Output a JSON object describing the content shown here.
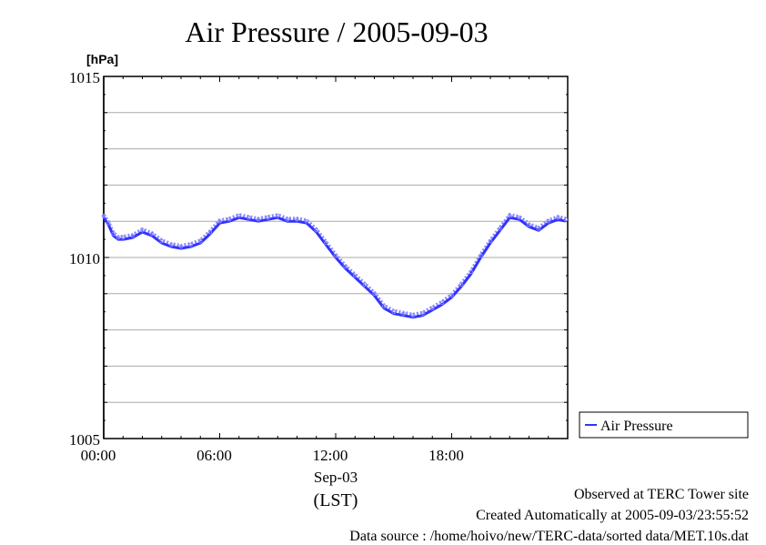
{
  "chart_data": {
    "type": "line",
    "title": "Air Pressure / 2005-09-03",
    "ylabel": "[hPa]",
    "xlabel": "",
    "ylim": [
      1005,
      1015
    ],
    "yticks": [
      "1015",
      "1010",
      "1005"
    ],
    "xlim": [
      0,
      24
    ],
    "xticks": [
      {
        "value": 0,
        "label": "00:00"
      },
      {
        "value": 6,
        "label": "06:00"
      },
      {
        "value": 12,
        "label": "12:00"
      },
      {
        "value": 18,
        "label": "18:00"
      }
    ],
    "date_label": "Sep-03",
    "timezone_label": "(LST)",
    "grid": true,
    "legend": "right",
    "series": [
      {
        "name": "Air Pressure",
        "color": "#3333ff",
        "marker_color": "#8888ff",
        "x": [
          0,
          0.25,
          0.5,
          0.75,
          1,
          1.5,
          2,
          2.5,
          3,
          3.5,
          4,
          4.5,
          5,
          5.5,
          6,
          6.5,
          7,
          7.5,
          8,
          8.5,
          9,
          9.5,
          10,
          10.5,
          11,
          11.5,
          12,
          12.5,
          13,
          13.5,
          14,
          14.5,
          15,
          15.5,
          16,
          16.5,
          17,
          17.5,
          18,
          18.5,
          19,
          19.5,
          20,
          20.5,
          21,
          21.5,
          22,
          22.5,
          23,
          23.5,
          23.9
        ],
        "y": [
          1011.1,
          1010.9,
          1010.6,
          1010.5,
          1010.5,
          1010.55,
          1010.7,
          1010.6,
          1010.4,
          1010.3,
          1010.25,
          1010.3,
          1010.4,
          1010.65,
          1010.95,
          1011.0,
          1011.1,
          1011.05,
          1011.0,
          1011.05,
          1011.1,
          1011.0,
          1011.0,
          1010.95,
          1010.7,
          1010.35,
          1010.0,
          1009.7,
          1009.45,
          1009.2,
          1008.95,
          1008.6,
          1008.45,
          1008.4,
          1008.35,
          1008.4,
          1008.55,
          1008.7,
          1008.9,
          1009.2,
          1009.55,
          1010.0,
          1010.4,
          1010.75,
          1011.1,
          1011.05,
          1010.85,
          1010.75,
          1010.95,
          1011.05,
          1011.0
        ]
      }
    ]
  },
  "notes": {
    "site": "Observed at TERC Tower site",
    "created": "Created Automatically at 2005-09-03/23:55:52",
    "source": "Data source : /home/hoivo/new/TERC-data/sorted  data/MET.10s.dat"
  }
}
